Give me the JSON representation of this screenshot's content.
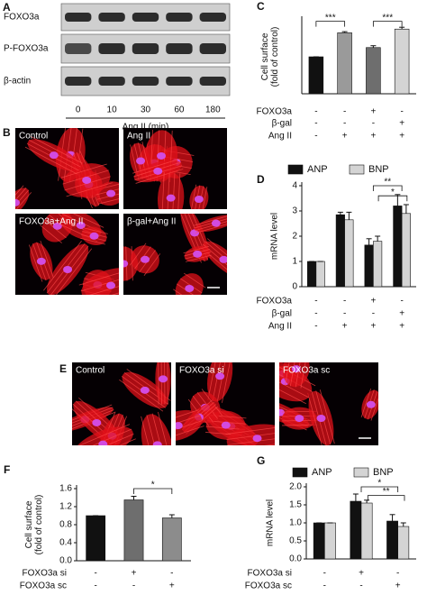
{
  "panels": {
    "A": {
      "label": "A",
      "rows": [
        "FOXO3a",
        "P-FOXO3a",
        "β-actin"
      ],
      "lanes": [
        "0",
        "10",
        "30",
        "60",
        "180"
      ],
      "xlabel": "Ang II (min)"
    },
    "B": {
      "label": "B",
      "images": [
        "Control",
        "Ang II",
        "FOXO3a+Ang II",
        "β-gal+Ang II"
      ]
    },
    "E": {
      "label": "E",
      "images": [
        "Control",
        "FOXO3a si",
        "FOXO3a sc"
      ]
    }
  },
  "chart_data": [
    {
      "type": "bar",
      "label": "C",
      "ylabel": [
        "Cell surface",
        "(fold of control)"
      ],
      "values": [
        1.0,
        1.65,
        1.25,
        1.75
      ],
      "errors": [
        0,
        0.03,
        0.05,
        0.05
      ],
      "colors": [
        "#111111",
        "#9a9a9a",
        "#6e6e6e",
        "#d4d4d4"
      ],
      "ylim": [
        0,
        2
      ],
      "conditions": [
        {
          "name": "FOXO3a",
          "marks": [
            "-",
            "-",
            "+",
            "-"
          ]
        },
        {
          "name": "β-gal",
          "marks": [
            "-",
            "-",
            "-",
            "+"
          ]
        },
        {
          "name": "Ang II",
          "marks": [
            "-",
            "+",
            "+",
            "+"
          ]
        }
      ],
      "annotations": [
        "***",
        "***"
      ]
    },
    {
      "type": "grouped-bar",
      "label": "D",
      "ylabel": [
        "mRNA level"
      ],
      "series": [
        {
          "name": "ANP",
          "color": "#111111",
          "values": [
            1.0,
            2.85,
            1.65,
            3.2
          ],
          "errors": [
            0,
            0.1,
            0.25,
            0.45
          ]
        },
        {
          "name": "BNP",
          "color": "#d4d4d4",
          "values": [
            1.0,
            2.65,
            1.8,
            2.9
          ],
          "errors": [
            0,
            0.3,
            0.2,
            0.35
          ]
        }
      ],
      "ylim": [
        0,
        4
      ],
      "yticks": [
        0,
        1,
        2,
        3,
        4
      ],
      "conditions": [
        {
          "name": "FOXO3a",
          "marks": [
            "-",
            "-",
            "+",
            "-"
          ]
        },
        {
          "name": "β-gal",
          "marks": [
            "-",
            "-",
            "-",
            "+"
          ]
        },
        {
          "name": "Ang II",
          "marks": [
            "-",
            "+",
            "+",
            "+"
          ]
        }
      ],
      "annotations": [
        "**",
        "*"
      ]
    },
    {
      "type": "bar",
      "label": "F",
      "ylabel": [
        "Cell surface",
        "(fold of control)"
      ],
      "values": [
        1.0,
        1.35,
        0.95
      ],
      "errors": [
        0,
        0.08,
        0.07
      ],
      "colors": [
        "#111111",
        "#6e6e6e",
        "#8c8c8c"
      ],
      "ylim": [
        0,
        1.6
      ],
      "yticks": [
        {
          "value": 0,
          "label": "0.0"
        },
        0.4,
        0.8,
        1.2,
        1.6
      ],
      "conditions": [
        {
          "name": "FOXO3a si",
          "marks": [
            "-",
            "+",
            "-"
          ]
        },
        {
          "name": "FOXO3a sc",
          "marks": [
            "-",
            "-",
            "+"
          ]
        }
      ],
      "annotations": [
        "*"
      ]
    },
    {
      "type": "grouped-bar",
      "label": "G",
      "ylabel": [
        "mRNA level"
      ],
      "series": [
        {
          "name": "ANP",
          "color": "#111111",
          "values": [
            1.0,
            1.6,
            1.05
          ],
          "errors": [
            0,
            0.2,
            0.18
          ]
        },
        {
          "name": "BNP",
          "color": "#d4d4d4",
          "values": [
            1.0,
            1.55,
            0.9
          ],
          "errors": [
            0,
            0.08,
            0.1
          ]
        }
      ],
      "ylim": [
        0,
        2
      ],
      "yticks": [
        {
          "value": 0,
          "label": "0.0"
        },
        0.5,
        {
          "value": 1,
          "label": "1.0"
        },
        1.5,
        {
          "value": 2,
          "label": "2.0"
        }
      ],
      "conditions": [
        {
          "name": "FOXO3a si",
          "marks": [
            "-",
            "+",
            "-"
          ]
        },
        {
          "name": "FOXO3a sc",
          "marks": [
            "-",
            "-",
            "+"
          ]
        }
      ],
      "annotations": [
        "*",
        "**"
      ]
    }
  ]
}
